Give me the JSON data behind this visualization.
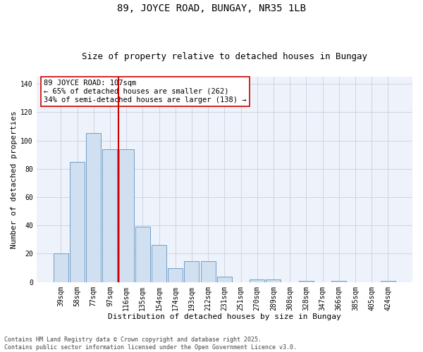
{
  "title": "89, JOYCE ROAD, BUNGAY, NR35 1LB",
  "subtitle": "Size of property relative to detached houses in Bungay",
  "xlabel": "Distribution of detached houses by size in Bungay",
  "ylabel": "Number of detached properties",
  "categories": [
    "39sqm",
    "58sqm",
    "77sqm",
    "97sqm",
    "116sqm",
    "135sqm",
    "154sqm",
    "174sqm",
    "193sqm",
    "212sqm",
    "231sqm",
    "251sqm",
    "270sqm",
    "289sqm",
    "308sqm",
    "328sqm",
    "347sqm",
    "366sqm",
    "385sqm",
    "405sqm",
    "424sqm"
  ],
  "bar_values": [
    20,
    85,
    105,
    94,
    94,
    39,
    26,
    10,
    15,
    15,
    4,
    0,
    2,
    2,
    0,
    1,
    0,
    1,
    0,
    0,
    1
  ],
  "bar_color": "#d0e0f0",
  "bar_edge_color": "#6090c0",
  "vline_pos": 3.5,
  "vline_color": "#cc0000",
  "annotation_text": "89 JOYCE ROAD: 107sqm\n← 65% of detached houses are smaller (262)\n34% of semi-detached houses are larger (138) →",
  "annotation_box_facecolor": "#ffffff",
  "annotation_box_edgecolor": "#cc0000",
  "ylim": [
    0,
    145
  ],
  "yticks": [
    0,
    20,
    40,
    60,
    80,
    100,
    120,
    140
  ],
  "plot_bg_color": "#eef2fb",
  "grid_color": "#c8d0e0",
  "footer_text": "Contains HM Land Registry data © Crown copyright and database right 2025.\nContains public sector information licensed under the Open Government Licence v3.0.",
  "title_fontsize": 10,
  "subtitle_fontsize": 9,
  "axis_label_fontsize": 8,
  "tick_fontsize": 7,
  "annotation_fontsize": 7.5,
  "footer_fontsize": 6
}
